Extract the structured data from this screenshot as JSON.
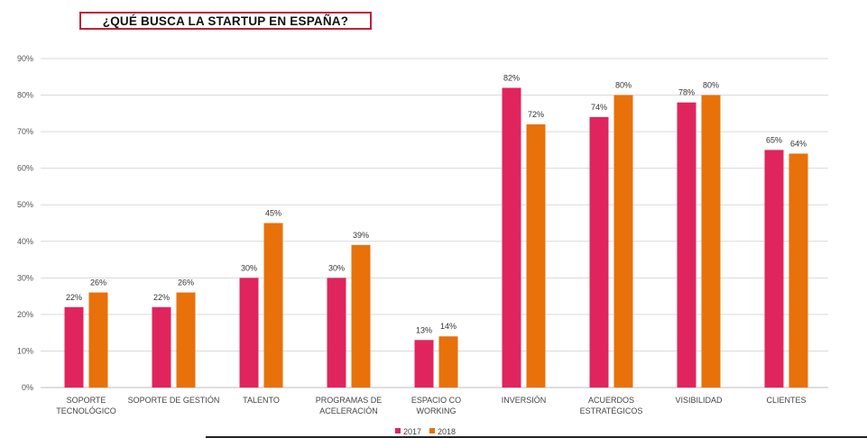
{
  "chart_data": {
    "type": "bar",
    "title": "¿QUÉ BUSCA LA STARTUP EN ESPAÑA?",
    "categories": [
      [
        "SOPORTE",
        "TECNOLÓGICO"
      ],
      [
        "SOPORTE DE GESTIÓN"
      ],
      [
        "TALENTO"
      ],
      [
        "PROGRAMAS DE",
        "ACELERACIÓN"
      ],
      [
        "ESPACIO CO",
        "WORKING"
      ],
      [
        "INVERSIÓN"
      ],
      [
        "ACUERDOS",
        "ESTRATÉGICOS"
      ],
      [
        "VISIBILIDAD"
      ],
      [
        "CLIENTES"
      ]
    ],
    "series": [
      {
        "name": "2017",
        "color": "#e0245e",
        "values": [
          22,
          22,
          30,
          30,
          13,
          82,
          74,
          78,
          65
        ],
        "labels": [
          "22%",
          "22%",
          "30%",
          "30%",
          "13%",
          "82%",
          "74%",
          "78%",
          "65%"
        ]
      },
      {
        "name": "2018",
        "color": "#e8710a",
        "values": [
          26,
          26,
          45,
          39,
          14,
          72,
          80,
          80,
          64
        ],
        "labels": [
          "26%",
          "26%",
          "45%",
          "39%",
          "14%",
          "72%",
          "80%",
          "80%",
          "64%"
        ]
      }
    ],
    "ylim": [
      0,
      90
    ],
    "yticks": [
      "0%",
      "10%",
      "20%",
      "30%",
      "40%",
      "50%",
      "60%",
      "70%",
      "80%",
      "90%"
    ],
    "grid": true,
    "legend_position": "bottom-center"
  }
}
